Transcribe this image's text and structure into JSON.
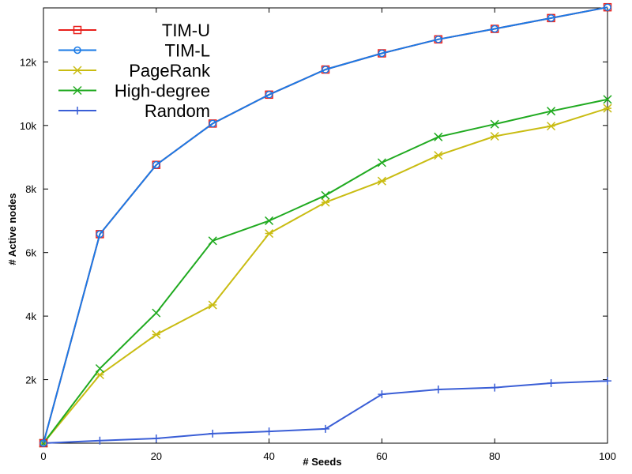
{
  "chart_data": {
    "type": "line",
    "title": "",
    "xlabel": "# Seeds",
    "ylabel": "# Active nodes",
    "xlim": [
      0,
      100
    ],
    "ylim": [
      0,
      13700
    ],
    "x": [
      0,
      10,
      20,
      30,
      40,
      50,
      60,
      70,
      80,
      90,
      100
    ],
    "x_ticks": [
      0,
      20,
      40,
      60,
      80,
      100
    ],
    "x_tick_labels": [
      "0",
      "20",
      "40",
      "60",
      "80",
      "100"
    ],
    "y_ticks": [
      2000,
      4000,
      6000,
      8000,
      10000,
      12000
    ],
    "y_tick_labels": [
      "2k",
      "4k",
      "6k",
      "8k",
      "10k",
      "12k"
    ],
    "grid": false,
    "legend_position": "top-left",
    "series": [
      {
        "name": "TIM-U",
        "color": "#e8201c",
        "marker": "square",
        "values": [
          0,
          6580,
          8760,
          10060,
          10970,
          11760,
          12270,
          12710,
          13040,
          13380,
          13720
        ]
      },
      {
        "name": "TIM-L",
        "color": "#1a7ae6",
        "marker": "circle",
        "values": [
          0,
          6580,
          8760,
          10060,
          10970,
          11760,
          12270,
          12710,
          13040,
          13380,
          13720
        ]
      },
      {
        "name": "PageRank",
        "color": "#c9bc12",
        "marker": "asterisk",
        "values": [
          0,
          2150,
          3420,
          4350,
          6600,
          7580,
          8250,
          9060,
          9660,
          9980,
          10540
        ]
      },
      {
        "name": "High-degree",
        "color": "#20aa20",
        "marker": "x",
        "values": [
          0,
          2350,
          4100,
          6370,
          7000,
          7800,
          8830,
          9640,
          10040,
          10450,
          10820
        ]
      },
      {
        "name": "Random",
        "color": "#3a5ed6",
        "marker": "plus",
        "values": [
          0,
          80,
          150,
          300,
          370,
          450,
          1540,
          1690,
          1750,
          1890,
          1960
        ]
      }
    ]
  }
}
